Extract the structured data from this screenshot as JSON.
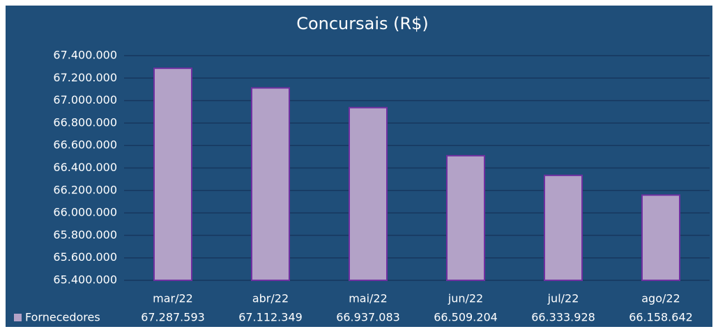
{
  "chart_data": {
    "type": "bar",
    "title": "Concursais (R$)",
    "categories": [
      "mar/22",
      "abr/22",
      "mai/22",
      "jun/22",
      "jul/22",
      "ago/22"
    ],
    "series": [
      {
        "name": "Fornecedores",
        "color": "#b3a2c7",
        "values": [
          67287593,
          67112349,
          66937083,
          66509204,
          66333928,
          66158642
        ],
        "value_labels": [
          "67.287.593",
          "67.112.349",
          "66.937.083",
          "66.509.204",
          "66.333.928",
          "66.158.642"
        ]
      }
    ],
    "ylim": [
      65400000,
      67400000
    ],
    "yticks": [
      {
        "value": 65400000,
        "label": "65.400.000"
      },
      {
        "value": 65600000,
        "label": "65.600.000"
      },
      {
        "value": 65800000,
        "label": "65.800.000"
      },
      {
        "value": 66000000,
        "label": "66.000.000"
      },
      {
        "value": 66200000,
        "label": "66.200.000"
      },
      {
        "value": 66400000,
        "label": "66.400.000"
      },
      {
        "value": 66600000,
        "label": "66.600.000"
      },
      {
        "value": 66800000,
        "label": "66.800.000"
      },
      {
        "value": 67000000,
        "label": "67.000.000"
      },
      {
        "value": 67200000,
        "label": "67.200.000"
      },
      {
        "value": 67400000,
        "label": "67.400.000"
      }
    ],
    "grid": true
  }
}
